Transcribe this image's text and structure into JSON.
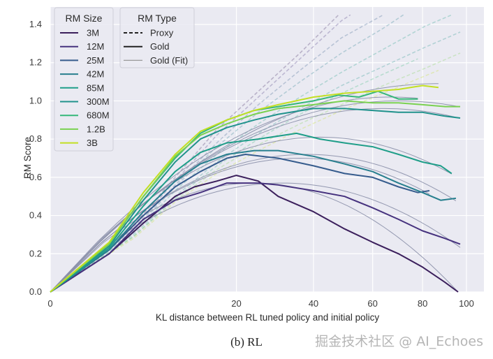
{
  "chart_data": {
    "type": "line",
    "title": "",
    "caption": "(b) RL",
    "xlabel": "KL distance between RL tuned policy and initial policy",
    "ylabel": "RM Score",
    "x_scale": "sqrt",
    "xlim": [
      0,
      105
    ],
    "ylim": [
      0,
      1.45
    ],
    "x_ticks": [
      "0",
      "20",
      "40",
      "60",
      "80",
      "100"
    ],
    "x_tick_values": [
      0,
      20,
      40,
      60,
      80,
      100
    ],
    "y_ticks": [
      "0.0",
      "0.2",
      "0.4",
      "0.6",
      "0.8",
      "1.0",
      "1.2",
      "1.4"
    ],
    "y_tick_values": [
      0,
      0.2,
      0.4,
      0.6,
      0.8,
      1.0,
      1.2,
      1.4
    ],
    "grid": true,
    "legend_size": {
      "title": "RM Size",
      "placement": "top-left",
      "entries": [
        "3M",
        "12M",
        "25M",
        "42M",
        "85M",
        "300M",
        "680M",
        "1.2B",
        "3B"
      ]
    },
    "legend_type": {
      "title": "RM Type",
      "placement": "top-left",
      "entries": [
        {
          "label": "Proxy",
          "style": "dashed"
        },
        {
          "label": "Gold",
          "style": "solid"
        },
        {
          "label": "Gold (Fit)",
          "style": "thin"
        }
      ]
    },
    "series": [
      {
        "name": "3M",
        "color": "#3b1f5c",
        "gold_peak": 0.57,
        "peak_kl": 24,
        "max_kl": 96,
        "gold": [
          [
            0,
            0
          ],
          [
            2,
            0.2
          ],
          [
            5,
            0.36
          ],
          [
            9,
            0.5
          ],
          [
            12,
            0.55
          ],
          [
            16,
            0.58
          ],
          [
            20,
            0.61
          ],
          [
            25,
            0.58
          ],
          [
            30,
            0.5
          ],
          [
            40,
            0.42
          ],
          [
            50,
            0.33
          ],
          [
            60,
            0.26
          ],
          [
            70,
            0.2
          ],
          [
            80,
            0.13
          ],
          [
            90,
            0.05
          ],
          [
            96,
            0.0
          ]
        ]
      },
      {
        "name": "12M",
        "color": "#46327e",
        "gold_peak": 0.57,
        "peak_kl": 31,
        "max_kl": 97,
        "gold": [
          [
            0,
            0
          ],
          [
            2,
            0.2
          ],
          [
            5,
            0.38
          ],
          [
            9,
            0.48
          ],
          [
            13,
            0.52
          ],
          [
            18,
            0.57
          ],
          [
            25,
            0.57
          ],
          [
            30,
            0.56
          ],
          [
            40,
            0.53
          ],
          [
            50,
            0.5
          ],
          [
            60,
            0.44
          ],
          [
            70,
            0.38
          ],
          [
            80,
            0.32
          ],
          [
            90,
            0.28
          ],
          [
            97,
            0.25
          ]
        ]
      },
      {
        "name": "25M",
        "color": "#365c8d",
        "gold_peak": 0.7,
        "peak_kl": 36,
        "max_kl": 83,
        "gold": [
          [
            0,
            0
          ],
          [
            2,
            0.22
          ],
          [
            5,
            0.4
          ],
          [
            9,
            0.55
          ],
          [
            13,
            0.63
          ],
          [
            18,
            0.7
          ],
          [
            22,
            0.72
          ],
          [
            30,
            0.7
          ],
          [
            40,
            0.66
          ],
          [
            50,
            0.62
          ],
          [
            60,
            0.6
          ],
          [
            70,
            0.55
          ],
          [
            78,
            0.52
          ],
          [
            83,
            0.53
          ]
        ]
      },
      {
        "name": "42M",
        "color": "#277f8e",
        "gold_peak": 0.72,
        "peak_kl": 38,
        "max_kl": 95,
        "gold": [
          [
            0,
            0
          ],
          [
            2,
            0.22
          ],
          [
            5,
            0.42
          ],
          [
            9,
            0.58
          ],
          [
            13,
            0.67
          ],
          [
            18,
            0.72
          ],
          [
            24,
            0.74
          ],
          [
            30,
            0.74
          ],
          [
            40,
            0.71
          ],
          [
            50,
            0.67
          ],
          [
            60,
            0.63
          ],
          [
            70,
            0.57
          ],
          [
            80,
            0.52
          ],
          [
            88,
            0.48
          ],
          [
            95,
            0.49
          ]
        ]
      },
      {
        "name": "85M",
        "color": "#1f9e89",
        "gold_peak": 0.81,
        "peak_kl": 42,
        "max_kl": 93,
        "gold": [
          [
            0,
            0
          ],
          [
            2,
            0.23
          ],
          [
            5,
            0.45
          ],
          [
            9,
            0.63
          ],
          [
            13,
            0.73
          ],
          [
            18,
            0.78
          ],
          [
            25,
            0.8
          ],
          [
            35,
            0.83
          ],
          [
            42,
            0.8
          ],
          [
            50,
            0.78
          ],
          [
            60,
            0.76
          ],
          [
            70,
            0.72
          ],
          [
            80,
            0.68
          ],
          [
            88,
            0.66
          ],
          [
            93,
            0.62
          ]
        ]
      },
      {
        "name": "300M",
        "color": "#20928c",
        "gold_peak": 0.96,
        "peak_kl": 64,
        "max_kl": 97,
        "gold": [
          [
            0,
            0
          ],
          [
            2,
            0.24
          ],
          [
            5,
            0.48
          ],
          [
            9,
            0.68
          ],
          [
            13,
            0.8
          ],
          [
            18,
            0.86
          ],
          [
            24,
            0.9
          ],
          [
            30,
            0.93
          ],
          [
            40,
            0.96
          ],
          [
            50,
            0.96
          ],
          [
            60,
            0.95
          ],
          [
            70,
            0.94
          ],
          [
            80,
            0.94
          ],
          [
            90,
            0.92
          ],
          [
            97,
            0.91
          ]
        ]
      },
      {
        "name": "680M",
        "color": "#35b779",
        "gold_peak": 1.02,
        "peak_kl": 67,
        "max_kl": 78,
        "gold": [
          [
            0,
            0
          ],
          [
            2,
            0.25
          ],
          [
            5,
            0.5
          ],
          [
            9,
            0.7
          ],
          [
            13,
            0.83
          ],
          [
            18,
            0.9
          ],
          [
            24,
            0.95
          ],
          [
            30,
            0.97
          ],
          [
            40,
            1.0
          ],
          [
            48,
            1.03
          ],
          [
            55,
            1.02
          ],
          [
            62,
            1.05
          ],
          [
            70,
            1.01
          ],
          [
            78,
            1.01
          ]
        ]
      },
      {
        "name": "1.2B",
        "color": "#7ad151",
        "gold_peak": 1.0,
        "peak_kl": 70,
        "max_kl": 97,
        "gold": [
          [
            0,
            0
          ],
          [
            2,
            0.25
          ],
          [
            5,
            0.5
          ],
          [
            9,
            0.71
          ],
          [
            13,
            0.82
          ],
          [
            18,
            0.88
          ],
          [
            24,
            0.93
          ],
          [
            30,
            0.96
          ],
          [
            40,
            0.98
          ],
          [
            50,
            1.0
          ],
          [
            60,
            0.99
          ],
          [
            70,
            0.99
          ],
          [
            80,
            0.98
          ],
          [
            90,
            0.97
          ],
          [
            97,
            0.97
          ]
        ]
      },
      {
        "name": "3B",
        "color": "#c2df23",
        "gold_peak": 1.09,
        "peak_kl": 87,
        "max_kl": 87,
        "gold": [
          [
            0,
            0
          ],
          [
            2,
            0.26
          ],
          [
            5,
            0.52
          ],
          [
            9,
            0.72
          ],
          [
            13,
            0.84
          ],
          [
            18,
            0.9
          ],
          [
            24,
            0.95
          ],
          [
            30,
            0.98
          ],
          [
            40,
            1.02
          ],
          [
            50,
            1.04
          ],
          [
            60,
            1.05
          ],
          [
            70,
            1.06
          ],
          [
            80,
            1.08
          ],
          [
            87,
            1.07
          ]
        ]
      }
    ],
    "proxy_series": [
      {
        "name": "3M",
        "proxy": [
          [
            0,
            0
          ],
          [
            4,
            0.35
          ],
          [
            9,
            0.6
          ],
          [
            16,
            0.85
          ],
          [
            25,
            1.05
          ],
          [
            36,
            1.25
          ],
          [
            48,
            1.45
          ]
        ]
      },
      {
        "name": "12M",
        "proxy": [
          [
            0,
            0
          ],
          [
            4,
            0.34
          ],
          [
            9,
            0.58
          ],
          [
            16,
            0.82
          ],
          [
            25,
            1.02
          ],
          [
            36,
            1.22
          ],
          [
            49,
            1.42
          ],
          [
            52,
            1.45
          ]
        ]
      },
      {
        "name": "25M",
        "proxy": [
          [
            0,
            0
          ],
          [
            4,
            0.33
          ],
          [
            9,
            0.56
          ],
          [
            16,
            0.78
          ],
          [
            25,
            0.98
          ],
          [
            36,
            1.16
          ],
          [
            49,
            1.33
          ],
          [
            64,
            1.45
          ]
        ]
      },
      {
        "name": "42M",
        "proxy": [
          [
            0,
            0
          ],
          [
            4,
            0.32
          ],
          [
            9,
            0.55
          ],
          [
            16,
            0.76
          ],
          [
            25,
            0.94
          ],
          [
            36,
            1.1
          ],
          [
            49,
            1.25
          ],
          [
            64,
            1.38
          ],
          [
            72,
            1.45
          ]
        ]
      },
      {
        "name": "85M",
        "proxy": [
          [
            0,
            0
          ],
          [
            4,
            0.31
          ],
          [
            9,
            0.53
          ],
          [
            16,
            0.72
          ],
          [
            25,
            0.88
          ],
          [
            36,
            1.02
          ],
          [
            49,
            1.15
          ],
          [
            64,
            1.27
          ],
          [
            81,
            1.39
          ],
          [
            93,
            1.45
          ]
        ]
      },
      {
        "name": "300M",
        "proxy": [
          [
            0,
            0
          ],
          [
            4,
            0.3
          ],
          [
            9,
            0.5
          ],
          [
            16,
            0.68
          ],
          [
            25,
            0.83
          ],
          [
            36,
            0.96
          ],
          [
            49,
            1.08
          ],
          [
            64,
            1.18
          ],
          [
            81,
            1.28
          ],
          [
            97,
            1.36
          ]
        ]
      },
      {
        "name": "680M",
        "proxy": [
          [
            0,
            0
          ],
          [
            4,
            0.29
          ],
          [
            9,
            0.49
          ],
          [
            16,
            0.66
          ],
          [
            25,
            0.8
          ],
          [
            36,
            0.93
          ],
          [
            49,
            1.04
          ],
          [
            64,
            1.14
          ],
          [
            78,
            1.22
          ]
        ]
      },
      {
        "name": "1.2B",
        "proxy": [
          [
            0,
            0
          ],
          [
            4,
            0.29
          ],
          [
            9,
            0.48
          ],
          [
            16,
            0.64
          ],
          [
            25,
            0.77
          ],
          [
            36,
            0.88
          ],
          [
            49,
            0.98
          ],
          [
            64,
            1.08
          ],
          [
            81,
            1.17
          ],
          [
            97,
            1.25
          ]
        ]
      },
      {
        "name": "3B",
        "proxy": [
          [
            0,
            0
          ],
          [
            4,
            0.28
          ],
          [
            9,
            0.47
          ],
          [
            16,
            0.62
          ],
          [
            25,
            0.74
          ],
          [
            36,
            0.85
          ],
          [
            49,
            0.95
          ],
          [
            64,
            1.04
          ],
          [
            87,
            1.16
          ]
        ]
      }
    ]
  },
  "watermark": "掘金技术社区 @ AI_Echoes"
}
